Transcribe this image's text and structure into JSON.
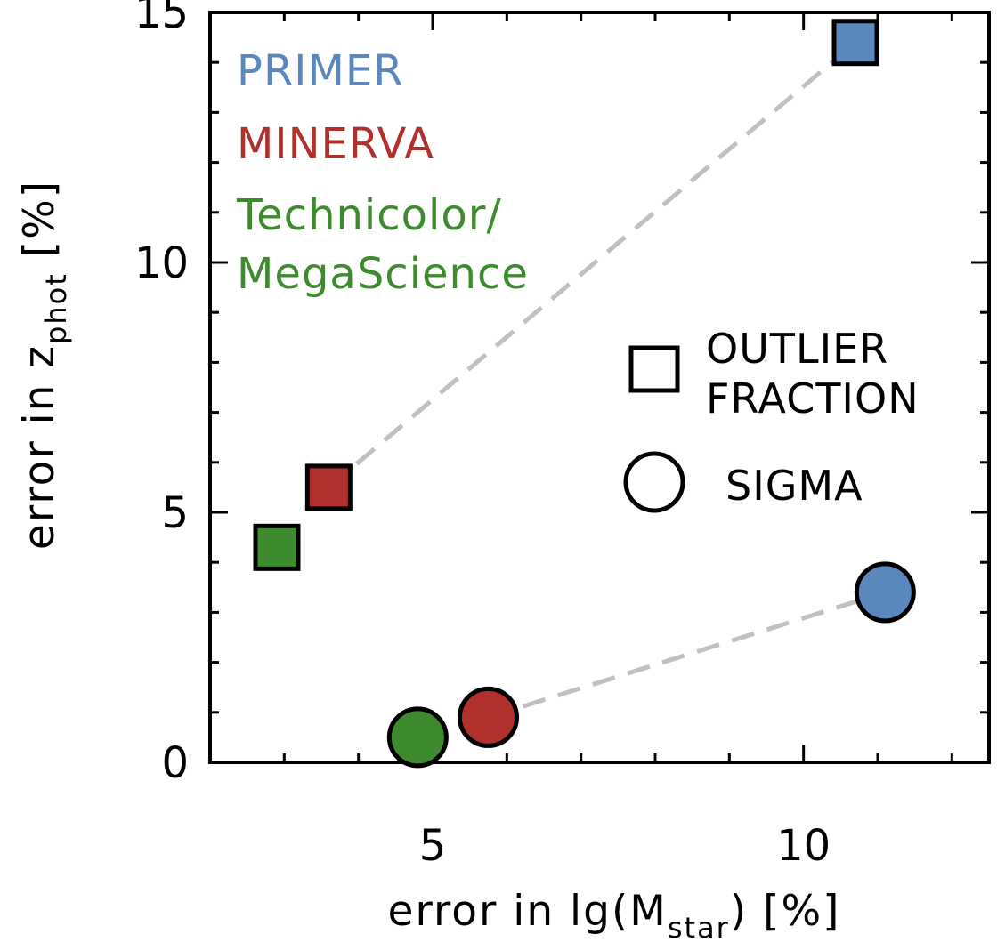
{
  "chart_data": {
    "type": "scatter",
    "title": "",
    "xlabel": {
      "prefix": "error in lg(M",
      "sub": "star",
      "suffix": ") [%]"
    },
    "ylabel": {
      "prefix": "error in z",
      "sub": "phot",
      "suffix": " [%]"
    },
    "xlim": [
      2.0,
      12.5
    ],
    "ylim": [
      0,
      15
    ],
    "x_ticks": [
      5,
      10
    ],
    "y_ticks": [
      0,
      5,
      10,
      15
    ],
    "x_minor_step": 1,
    "y_minor_step": 1,
    "surveys": [
      {
        "name": "PRIMER",
        "color": "#5a87bc"
      },
      {
        "name": "MINERVA",
        "color": "#b0302b"
      },
      {
        "name": "Technicolor/",
        "name_line2": "MegaScience",
        "color": "#3d8b2e"
      }
    ],
    "series": [
      {
        "name": "OUTLIER FRACTION",
        "marker": "square",
        "points": [
          {
            "survey": "Technicolor/MegaScience",
            "x": 2.9,
            "y": 4.3
          },
          {
            "survey": "MINERVA",
            "x": 3.6,
            "y": 5.5
          },
          {
            "survey": "PRIMER",
            "x": 10.7,
            "y": 14.4
          }
        ]
      },
      {
        "name": "SIGMA",
        "marker": "circle",
        "points": [
          {
            "survey": "Technicolor/MegaScience",
            "x": 4.8,
            "y": 0.5
          },
          {
            "survey": "MINERVA",
            "x": 5.75,
            "y": 0.9
          },
          {
            "survey": "PRIMER",
            "x": 11.1,
            "y": 3.4
          }
        ]
      }
    ],
    "marker_legend": [
      {
        "marker": "square",
        "line1": "OUTLIER",
        "line2": "FRACTION"
      },
      {
        "marker": "circle",
        "line1": "SIGMA",
        "line2": ""
      }
    ],
    "connector_color": "#c0c0c0"
  }
}
